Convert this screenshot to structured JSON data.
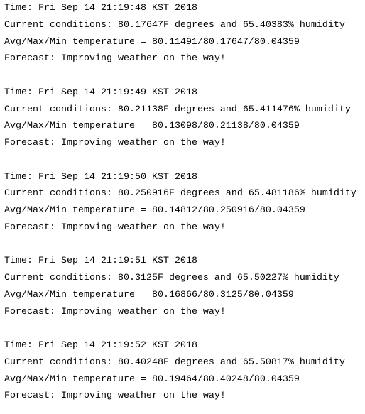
{
  "blocks": [
    {
      "time": "Time: Fri Sep 14 21:19:48 KST 2018",
      "conditions": "Current conditions: 80.17647F degrees and 65.40383% humidity",
      "stats": "Avg/Max/Min temperature = 80.11491/80.17647/80.04359",
      "forecast": "Forecast: Improving weather on the way!"
    },
    {
      "time": "Time: Fri Sep 14 21:19:49 KST 2018",
      "conditions": "Current conditions: 80.21138F degrees and 65.411476% humidity",
      "stats": "Avg/Max/Min temperature = 80.13098/80.21138/80.04359",
      "forecast": "Forecast: Improving weather on the way!"
    },
    {
      "time": "Time: Fri Sep 14 21:19:50 KST 2018",
      "conditions": "Current conditions: 80.250916F degrees and 65.481186% humidity",
      "stats": "Avg/Max/Min temperature = 80.14812/80.250916/80.04359",
      "forecast": "Forecast: Improving weather on the way!"
    },
    {
      "time": "Time: Fri Sep 14 21:19:51 KST 2018",
      "conditions": "Current conditions: 80.3125F degrees and 65.50227% humidity",
      "stats": "Avg/Max/Min temperature = 80.16866/80.3125/80.04359",
      "forecast": "Forecast: Improving weather on the way!"
    },
    {
      "time": "Time: Fri Sep 14 21:19:52 KST 2018",
      "conditions": "Current conditions: 80.40248F degrees and 65.50817% humidity",
      "stats": "Avg/Max/Min temperature = 80.19464/80.40248/80.04359",
      "forecast": "Forecast: Improving weather on the way!"
    }
  ]
}
